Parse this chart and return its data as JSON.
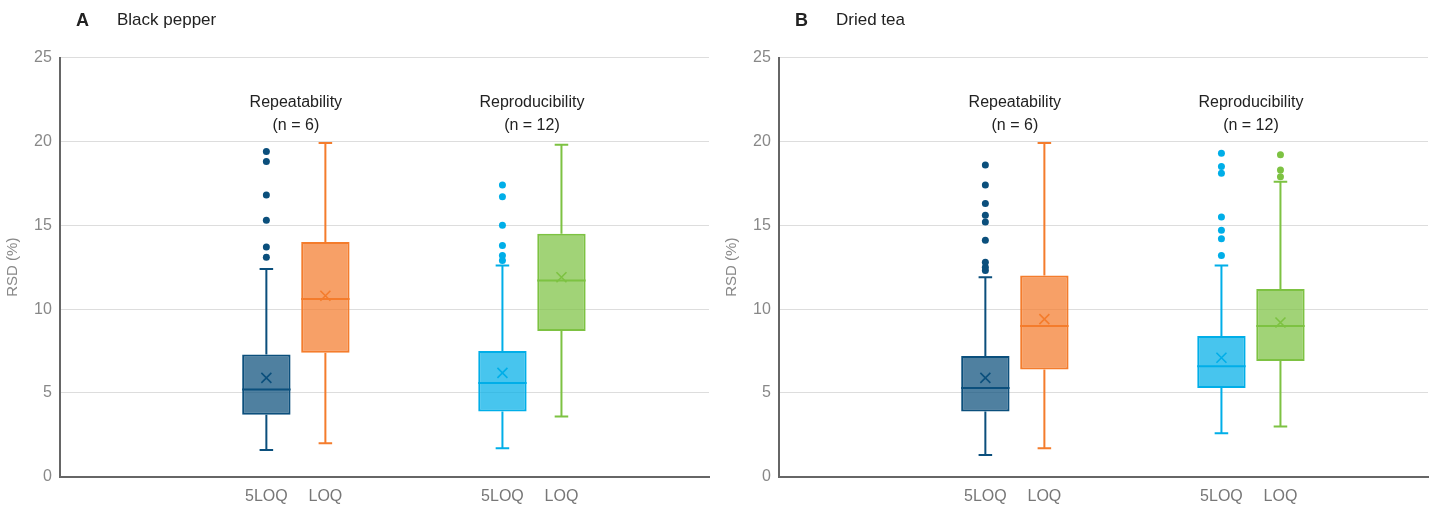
{
  "chart_data": [
    {
      "type": "box",
      "title": "A",
      "subtitle": "Black pepper",
      "ylabel": "RSD (%)",
      "grid": "y",
      "ylim": [
        0,
        25
      ],
      "yticks": [
        0,
        5,
        10,
        15,
        20,
        25
      ],
      "categories": [
        null,
        null,
        null,
        "5LOQ",
        "LOQ",
        null,
        null,
        "5LOQ",
        "LOQ",
        null,
        null
      ],
      "colors": [
        null,
        null,
        null,
        "#0b4f7c",
        "#f47c2c",
        null,
        null,
        "#00aee8",
        "#7dc242",
        null,
        null
      ],
      "annotations": [
        "Repeatability\n(n = 6)",
        "Reproducibility\n(n = 12)"
      ],
      "boxes": [
        null,
        null,
        null,
        {
          "low": 1.6,
          "q1": 3.7,
          "median": 5.2,
          "q3": 7.3,
          "high": 12.4,
          "mean": 5.9,
          "outliers": [
            13.1,
            13.7,
            15.3,
            16.8,
            18.8,
            19.4
          ]
        },
        {
          "low": 2.0,
          "q1": 7.4,
          "median": 10.6,
          "q3": 14.0,
          "high": 19.9,
          "mean": 10.8
        },
        null,
        null,
        {
          "low": 1.7,
          "q1": 3.9,
          "median": 5.6,
          "q3": 7.5,
          "high": 12.6,
          "mean": 6.2,
          "outliers": [
            12.9,
            13.2,
            13.8,
            15.0,
            16.7,
            17.4
          ]
        },
        {
          "low": 3.6,
          "q1": 8.7,
          "median": 11.7,
          "q3": 14.5,
          "high": 19.8,
          "mean": 11.9
        },
        null,
        null
      ]
    },
    {
      "type": "box",
      "title": "B",
      "subtitle": "Dried tea",
      "ylabel": "RSD (%)",
      "grid": "y",
      "ylim": [
        0,
        25
      ],
      "yticks": [
        0,
        5,
        10,
        15,
        20,
        25
      ],
      "categories": [
        null,
        null,
        null,
        "5LOQ",
        "LOQ",
        null,
        null,
        "5LOQ",
        "LOQ",
        null,
        null
      ],
      "colors": [
        null,
        null,
        null,
        "#0b4f7c",
        "#f47c2c",
        null,
        null,
        "#00aee8",
        "#7dc242",
        null,
        null
      ],
      "annotations": [
        "Repeatability\n(n = 6)",
        "Reproducibility\n(n = 12)"
      ],
      "boxes": [
        null,
        null,
        null,
        {
          "low": 1.3,
          "q1": 3.9,
          "median": 5.3,
          "q3": 7.2,
          "high": 11.9,
          "mean": 5.9,
          "outliers": [
            12.3,
            12.5,
            12.8,
            14.1,
            15.2,
            15.6,
            16.3,
            17.4,
            18.6
          ]
        },
        {
          "low": 1.7,
          "q1": 6.4,
          "median": 9.0,
          "q3": 12.0,
          "high": 19.9,
          "mean": 9.4
        },
        null,
        null,
        {
          "low": 2.6,
          "q1": 5.3,
          "median": 6.6,
          "q3": 8.4,
          "high": 12.6,
          "mean": 7.1,
          "outliers": [
            13.2,
            14.2,
            14.7,
            15.5,
            18.1,
            18.5,
            19.3
          ]
        },
        {
          "low": 3.0,
          "q1": 6.9,
          "median": 9.0,
          "q3": 11.2,
          "high": 17.6,
          "mean": 9.2,
          "outliers": [
            17.9,
            18.3,
            19.2
          ]
        },
        null,
        null
      ]
    }
  ]
}
